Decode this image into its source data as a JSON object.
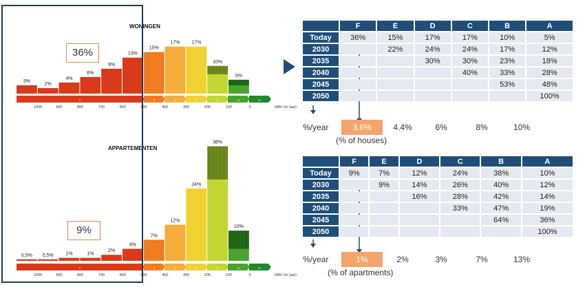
{
  "charts": [
    {
      "title": "WONINGEN",
      "highlight": "36%",
      "labels": [
        "3%",
        "2%",
        "4%",
        "6%",
        "9%",
        "13%",
        "15%",
        "17%",
        "17%",
        "10%",
        "5%"
      ],
      "band_labels": [
        "F",
        "E",
        "D",
        "C",
        "B",
        "A",
        "A+"
      ],
      "ticks": [
        "1000",
        "900",
        "800",
        "700",
        "600",
        "500",
        "400",
        "300",
        "200",
        "100",
        "0"
      ],
      "unit": "kWh/ (m² jaar)"
    },
    {
      "title": "APPARTEMENTEN",
      "highlight": "9%",
      "labels": [
        "0,5%",
        "0,5%",
        "1%",
        "1%",
        "2%",
        "4%",
        "7%",
        "12%",
        "24%",
        "38%",
        "10%"
      ],
      "band_labels": [
        "F",
        "E",
        "D",
        "C",
        "B",
        "A",
        "A+"
      ],
      "ticks": [
        "1000",
        "900",
        "800",
        "700",
        "600",
        "500",
        "400",
        "300",
        "200",
        "100",
        "0"
      ],
      "unit": "kWh/ (m² jaar)"
    }
  ],
  "chart_data": [
    {
      "type": "bar",
      "title": "WONINGEN",
      "categories": [
        "1000-900",
        "900-800",
        "800-700",
        "700-600",
        "600-500",
        "500-400",
        "400-300",
        "300-200",
        "200-100",
        "100-0",
        "0-"
      ],
      "values": [
        3,
        2,
        4,
        6,
        9,
        13,
        15,
        17,
        17,
        10,
        5
      ],
      "colors": [
        "#d83a1a",
        "#d83a1a",
        "#d83a1a",
        "#d83a1a",
        "#d83a1a",
        "#d83a1a",
        "#f07c22",
        "#f5ae3c",
        "#f2d233",
        "#c2d634",
        "#4aa32e"
      ],
      "hatched_top": [
        0,
        0,
        0,
        0,
        0,
        0,
        0,
        0,
        0,
        3,
        2
      ],
      "xlabel": "kWh/ (m² jaar)",
      "ylim": [
        0,
        19
      ]
    },
    {
      "type": "bar",
      "title": "APPARTEMENTEN",
      "categories": [
        "1000-900",
        "900-800",
        "800-700",
        "700-600",
        "600-500",
        "500-400",
        "400-300",
        "300-200",
        "200-100",
        "100-0",
        "0-"
      ],
      "values": [
        0.5,
        0.5,
        1,
        1,
        2,
        4,
        7,
        12,
        24,
        38,
        10
      ],
      "colors": [
        "#d83a1a",
        "#d83a1a",
        "#d83a1a",
        "#d83a1a",
        "#d83a1a",
        "#d83a1a",
        "#f07c22",
        "#f5ae3c",
        "#f2d233",
        "#c2d634",
        "#4aa32e"
      ],
      "hatched_top": [
        0,
        0,
        0,
        0,
        0,
        0,
        0,
        0,
        0,
        11,
        6
      ],
      "xlabel": "kWh/ (m² jaar)",
      "ylim": [
        0,
        39
      ]
    },
    {
      "type": "table",
      "columns": [
        "F",
        "E",
        "D",
        "C",
        "B",
        "A"
      ],
      "rows": [
        {
          "label": "Today",
          "cells": [
            "36%",
            "15%",
            "17%",
            "17%",
            "10%",
            "5%"
          ]
        },
        {
          "label": "2030",
          "cells": [
            "",
            "22%",
            "24%",
            "24%",
            "17%",
            "12%"
          ]
        },
        {
          "label": "2035",
          "cells": [
            "",
            "",
            "30%",
            "30%",
            "23%",
            "18%"
          ]
        },
        {
          "label": "2040",
          "cells": [
            "",
            "",
            "",
            "40%",
            "33%",
            "28%"
          ]
        },
        {
          "label": "2045",
          "cells": [
            "",
            "",
            "",
            "",
            "53%",
            "48%"
          ]
        },
        {
          "label": "2050",
          "cells": [
            "",
            "",
            "",
            "",
            "",
            "100%"
          ]
        }
      ],
      "per_year_label": "%/year",
      "per_year": [
        "3.6%",
        "4.4%",
        "6%",
        "8%",
        "10%"
      ],
      "note": "(% of houses)"
    },
    {
      "type": "table",
      "columns": [
        "F",
        "E",
        "D",
        "C",
        "B",
        "A"
      ],
      "rows": [
        {
          "label": "Today",
          "cells": [
            "9%",
            "7%",
            "12%",
            "24%",
            "38%",
            "10%"
          ]
        },
        {
          "label": "2030",
          "cells": [
            "",
            "9%",
            "14%",
            "26%",
            "40%",
            "12%"
          ]
        },
        {
          "label": "2035",
          "cells": [
            "",
            "",
            "16%",
            "28%",
            "42%",
            "14%"
          ]
        },
        {
          "label": "2040",
          "cells": [
            "",
            "",
            "",
            "33%",
            "47%",
            "19%"
          ]
        },
        {
          "label": "2045",
          "cells": [
            "",
            "",
            "",
            "",
            "64%",
            "36%"
          ]
        },
        {
          "label": "2050",
          "cells": [
            "",
            "",
            "",
            "",
            "",
            "100%"
          ]
        }
      ],
      "per_year_label": "%/year",
      "per_year": [
        "1%",
        "2%",
        "3%",
        "7%",
        "13%"
      ],
      "note": "(% of apartments)"
    }
  ]
}
